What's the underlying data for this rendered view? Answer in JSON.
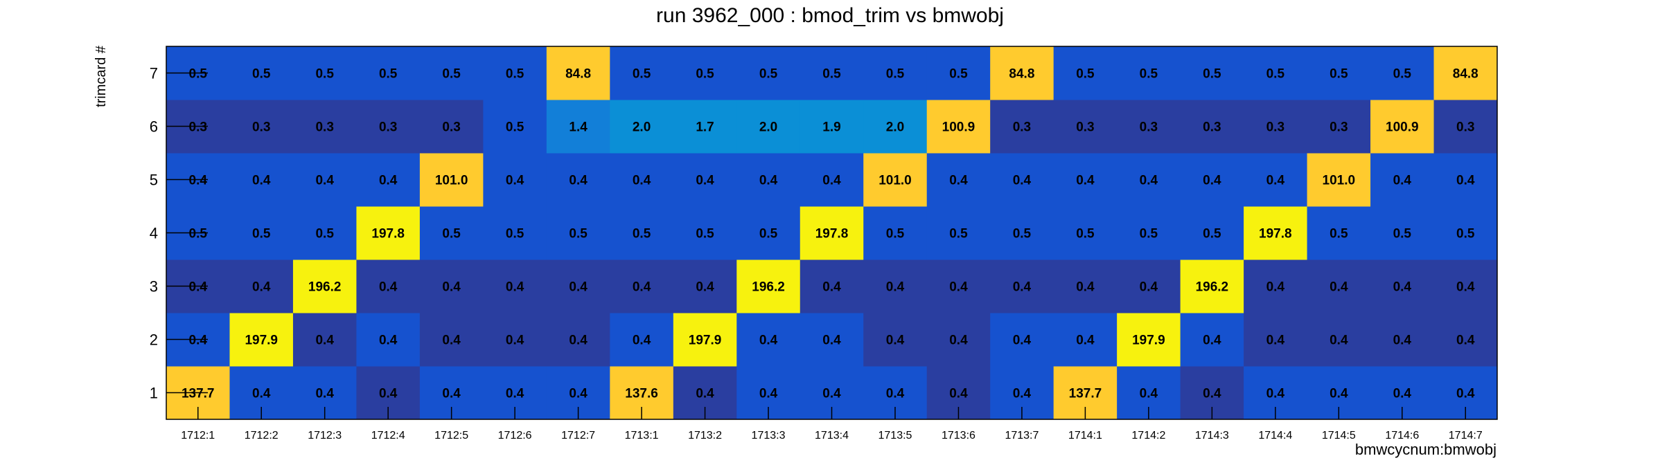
{
  "chart_data": {
    "type": "heatmap",
    "title": "run 3962_000 : bmod_trim vs bmwobj",
    "xlabel": "bmwcycnum:bmwobj",
    "ylabel": "trimcard #",
    "x_categories": [
      "1712:1",
      "1712:2",
      "1712:3",
      "1712:4",
      "1712:5",
      "1712:6",
      "1712:7",
      "1713:1",
      "1713:2",
      "1713:3",
      "1713:4",
      "1713:5",
      "1713:6",
      "1713:7",
      "1714:1",
      "1714:2",
      "1714:3",
      "1714:4",
      "1714:5",
      "1714:6",
      "1714:7"
    ],
    "y_categories": [
      "1",
      "2",
      "3",
      "4",
      "5",
      "6",
      "7"
    ],
    "values": [
      [
        "137.7",
        "0.4",
        "0.4",
        "0.4",
        "0.4",
        "0.4",
        "0.4",
        "137.6",
        "0.4",
        "0.4",
        "0.4",
        "0.4",
        "0.4",
        "0.4",
        "137.7",
        "0.4",
        "0.4",
        "0.4",
        "0.4",
        "0.4",
        "0.4"
      ],
      [
        "0.4",
        "197.9",
        "0.4",
        "0.4",
        "0.4",
        "0.4",
        "0.4",
        "0.4",
        "197.9",
        "0.4",
        "0.4",
        "0.4",
        "0.4",
        "0.4",
        "0.4",
        "197.9",
        "0.4",
        "0.4",
        "0.4",
        "0.4",
        "0.4"
      ],
      [
        "0.4",
        "0.4",
        "196.2",
        "0.4",
        "0.4",
        "0.4",
        "0.4",
        "0.4",
        "0.4",
        "196.2",
        "0.4",
        "0.4",
        "0.4",
        "0.4",
        "0.4",
        "0.4",
        "196.2",
        "0.4",
        "0.4",
        "0.4",
        "0.4"
      ],
      [
        "0.5",
        "0.5",
        "0.5",
        "197.8",
        "0.5",
        "0.5",
        "0.5",
        "0.5",
        "0.5",
        "0.5",
        "197.8",
        "0.5",
        "0.5",
        "0.5",
        "0.5",
        "0.5",
        "0.5",
        "197.8",
        "0.5",
        "0.5",
        "0.5"
      ],
      [
        "0.4",
        "0.4",
        "0.4",
        "0.4",
        "101.0",
        "0.4",
        "0.4",
        "0.4",
        "0.4",
        "0.4",
        "0.4",
        "101.0",
        "0.4",
        "0.4",
        "0.4",
        "0.4",
        "0.4",
        "0.4",
        "101.0",
        "0.4",
        "0.4"
      ],
      [
        "0.3",
        "0.3",
        "0.3",
        "0.3",
        "0.3",
        "0.5",
        "1.4",
        "2.0",
        "1.7",
        "2.0",
        "1.9",
        "2.0",
        "100.9",
        "0.3",
        "0.3",
        "0.3",
        "0.3",
        "0.3",
        "0.3",
        "100.9",
        "0.3"
      ],
      [
        "0.5",
        "0.5",
        "0.5",
        "0.5",
        "0.5",
        "0.5",
        "84.8",
        "0.5",
        "0.5",
        "0.5",
        "0.5",
        "0.5",
        "0.5",
        "84.8",
        "0.5",
        "0.5",
        "0.5",
        "0.5",
        "0.5",
        "0.5",
        "84.8"
      ]
    ],
    "colors": {
      "dark_blue": "#2a3ea0",
      "blue": "#1652cf",
      "mid_blue": "#127fd8",
      "cyan_blue": "#0b8fd6",
      "light_orange": "#ffcb2e",
      "yellow": "#f7f20e"
    },
    "grid": false,
    "legend": "none"
  }
}
